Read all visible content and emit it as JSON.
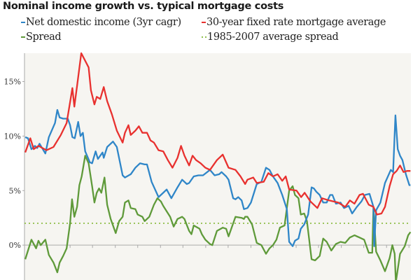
{
  "chart_data": {
    "type": "line",
    "title": "Nominal income growth vs. typical mortgage costs",
    "xlabel": "",
    "ylabel": "",
    "xlim": [
      0,
      100
    ],
    "ylim": [
      -3.2,
      17.6
    ],
    "yticks": [
      0,
      5,
      10,
      15
    ],
    "ytick_labels": [
      "0%",
      "5%",
      "10%",
      "15%"
    ],
    "xticks": [
      11.8,
      17.6,
      23.5,
      29.3,
      35.2,
      41.0,
      46.9,
      52.7,
      58.6,
      64.4,
      70.3,
      76.1,
      82.0,
      87.8,
      93.7,
      99.5
    ],
    "grid": false,
    "legend_placement": "top",
    "colors": {
      "income": "#2f86c8",
      "mortgage": "#e8312f",
      "spread": "#5f9a3a",
      "avg": "#9cc45c",
      "background": "#f6f5f1",
      "axis": "#aaaaaa"
    },
    "series": [
      {
        "key": "income",
        "name": "Net domestic income (3yr cagr)",
        "x": [
          0.2,
          0.9,
          1.8,
          2.7,
          3.3,
          3.9,
          5.4,
          6.3,
          7.9,
          8.5,
          9.1,
          10.0,
          11.2,
          11.8,
          12.4,
          13.0,
          13.9,
          14.5,
          15.1,
          15.7,
          16.9,
          17.5,
          18.4,
          19.0,
          20.2,
          20.5,
          21.4,
          22.9,
          23.9,
          25.4,
          26.0,
          27.5,
          28.7,
          29.9,
          31.1,
          31.7,
          32.9,
          34.7,
          35.9,
          36.8,
          38.0,
          39.6,
          40.8,
          42.0,
          42.6,
          43.8,
          45.0,
          46.2,
          48.0,
          49.2,
          50.4,
          51.0,
          52.2,
          52.8,
          54.0,
          54.6,
          55.3,
          56.2,
          56.8,
          57.7,
          58.6,
          60.1,
          61.3,
          62.5,
          63.4,
          64.3,
          65.5,
          66.7,
          67.9,
          68.5,
          69.4,
          70.0,
          70.9,
          71.5,
          72.4,
          73.4,
          74.3,
          74.9,
          75.5,
          76.4,
          77.3,
          78.2,
          79.1,
          79.7,
          80.6,
          81.8,
          82.7,
          83.9,
          84.8,
          86.0,
          87.2,
          88.1,
          89.3,
          90.3,
          90.5,
          91.0,
          92.1,
          93.3,
          94.8,
          95.4,
          96.0,
          96.6,
          97.2,
          97.8,
          98.7,
          99.6,
          99.9
        ],
        "y": [
          9.9,
          9.8,
          8.8,
          9.1,
          8.9,
          9.3,
          8.4,
          9.9,
          11.2,
          12.4,
          11.7,
          11.6,
          11.6,
          11.0,
          9.9,
          9.8,
          11.3,
          10.0,
          10.3,
          8.6,
          7.6,
          7.5,
          8.6,
          7.9,
          8.5,
          8.0,
          9.0,
          9.5,
          9.0,
          6.4,
          6.2,
          6.5,
          7.1,
          7.5,
          7.4,
          7.4,
          5.8,
          4.4,
          4.8,
          5.1,
          4.3,
          5.3,
          6.0,
          5.6,
          5.7,
          6.3,
          6.4,
          6.4,
          6.9,
          6.4,
          6.5,
          6.7,
          6.3,
          6.0,
          4.3,
          4.2,
          4.4,
          4.1,
          3.3,
          3.4,
          3.9,
          5.6,
          5.8,
          7.1,
          6.9,
          6.3,
          5.7,
          4.6,
          3.3,
          0.3,
          -0.1,
          0.4,
          0.6,
          1.5,
          1.9,
          2.8,
          5.3,
          5.2,
          4.9,
          4.6,
          3.9,
          3.9,
          4.6,
          4.6,
          3.8,
          3.9,
          3.4,
          3.6,
          2.9,
          3.5,
          4.0,
          4.6,
          4.7,
          3.5,
          -0.1,
          3.2,
          3.9,
          5.7,
          6.9,
          6.7,
          11.9,
          8.8,
          8.2,
          7.8,
          6.5,
          5.5,
          5.5
        ]
      },
      {
        "key": "mortgage",
        "name": "30-year fixed rate mortgage average",
        "x": [
          0.2,
          1.5,
          2.4,
          3.6,
          5.7,
          7.5,
          9.4,
          10.9,
          11.8,
          12.4,
          12.9,
          13.6,
          14.7,
          16.6,
          17.2,
          18.1,
          18.7,
          19.6,
          20.5,
          21.4,
          22.6,
          23.9,
          25.4,
          26.0,
          26.9,
          27.5,
          28.7,
          29.6,
          30.5,
          31.7,
          32.6,
          33.5,
          34.7,
          35.9,
          37.1,
          38.3,
          39.6,
          40.5,
          41.4,
          42.6,
          43.5,
          44.4,
          45.6,
          46.8,
          48.0,
          49.8,
          51.3,
          52.8,
          54.6,
          55.9,
          57.1,
          57.7,
          59.2,
          60.1,
          61.9,
          63.1,
          64.3,
          65.5,
          66.7,
          67.6,
          68.5,
          70.4,
          71.6,
          72.5,
          74.0,
          75.8,
          77.0,
          78.8,
          81.2,
          83.0,
          84.2,
          85.4,
          86.7,
          87.6,
          89.1,
          90.3,
          91.2,
          92.4,
          93.3,
          94.5,
          95.4,
          96.3,
          97.2,
          98.1,
          99.0,
          99.9
        ],
        "y": [
          8.5,
          9.8,
          8.8,
          9.1,
          8.7,
          9.0,
          10.1,
          11.2,
          13.1,
          14.4,
          12.7,
          14.6,
          17.6,
          16.3,
          14.2,
          12.9,
          13.6,
          13.4,
          14.5,
          13.2,
          12.0,
          10.5,
          9.4,
          10.3,
          11.0,
          10.1,
          10.5,
          10.9,
          10.3,
          10.3,
          9.6,
          9.4,
          8.7,
          8.6,
          7.8,
          7.1,
          8.0,
          9.1,
          8.2,
          7.3,
          8.2,
          7.8,
          7.5,
          7.1,
          6.9,
          7.8,
          8.3,
          7.1,
          6.9,
          6.3,
          5.6,
          6.0,
          6.2,
          5.7,
          5.8,
          6.6,
          6.3,
          6.5,
          5.9,
          6.3,
          5.1,
          5.0,
          4.4,
          4.8,
          4.0,
          3.4,
          4.3,
          4.1,
          3.9,
          3.5,
          4.1,
          3.8,
          4.6,
          4.7,
          3.7,
          3.5,
          2.8,
          2.9,
          3.5,
          5.4,
          6.5,
          6.8,
          7.3,
          6.7,
          6.8,
          6.8
        ]
      },
      {
        "key": "spread",
        "name": "Spread",
        "x": [
          0.2,
          1.8,
          3.0,
          3.6,
          4.2,
          5.4,
          6.3,
          7.5,
          8.5,
          9.1,
          10.0,
          10.9,
          11.8,
          12.3,
          12.9,
          13.6,
          14.2,
          14.8,
          15.7,
          16.6,
          17.5,
          18.1,
          18.7,
          19.3,
          19.9,
          20.7,
          21.4,
          22.3,
          23.6,
          24.5,
          25.4,
          26.0,
          26.9,
          27.5,
          28.7,
          29.3,
          30.5,
          31.1,
          32.3,
          33.5,
          34.4,
          35.3,
          35.9,
          36.8,
          37.7,
          38.6,
          39.6,
          40.8,
          41.4,
          42.6,
          43.2,
          43.8,
          45.3,
          45.9,
          46.8,
          48.0,
          48.6,
          49.8,
          51.3,
          52.2,
          52.8,
          54.6,
          56.2,
          56.8,
          57.1,
          57.7,
          58.9,
          60.1,
          61.3,
          62.5,
          63.4,
          64.3,
          65.2,
          66.1,
          67.3,
          68.5,
          69.4,
          70.0,
          70.9,
          71.5,
          72.4,
          73.1,
          74.3,
          75.2,
          76.4,
          77.3,
          78.2,
          79.4,
          80.6,
          81.8,
          83.0,
          84.2,
          85.4,
          86.7,
          87.9,
          89.1,
          90.0,
          90.3,
          91.0,
          92.1,
          93.3,
          94.5,
          95.2,
          95.8,
          96.1,
          97.2,
          98.4,
          99.3,
          99.9
        ],
        "y": [
          -1.3,
          0.5,
          -0.3,
          0.4,
          0.0,
          0.5,
          -0.9,
          -1.6,
          -2.5,
          -1.6,
          -1.0,
          -0.3,
          2.0,
          4.2,
          2.6,
          3.5,
          5.5,
          6.3,
          8.2,
          7.5,
          5.4,
          3.9,
          4.8,
          5.2,
          4.8,
          6.2,
          3.7,
          2.4,
          1.1,
          2.2,
          2.6,
          3.9,
          4.1,
          3.4,
          3.3,
          2.8,
          2.6,
          2.2,
          2.6,
          3.7,
          4.3,
          4.0,
          3.6,
          3.1,
          2.6,
          1.7,
          2.4,
          2.6,
          2.4,
          1.3,
          1.0,
          1.8,
          1.5,
          1.0,
          0.5,
          0.1,
          0.0,
          1.3,
          1.6,
          1.5,
          0.8,
          2.6,
          2.5,
          2.4,
          2.6,
          2.6,
          1.9,
          0.2,
          0.0,
          -0.8,
          -0.3,
          0.0,
          0.5,
          1.6,
          1.8,
          5.0,
          5.4,
          4.6,
          4.3,
          2.8,
          2.9,
          2.2,
          -1.3,
          -1.4,
          -1.0,
          0.6,
          0.3,
          -0.5,
          0.1,
          0.3,
          0.2,
          0.7,
          0.9,
          0.7,
          0.5,
          -0.7,
          -0.7,
          3.5,
          -0.6,
          -1.4,
          -2.4,
          -1.2,
          0.0,
          -0.8,
          -3.4,
          -0.8,
          -0.1,
          0.9,
          1.2
        ]
      },
      {
        "key": "avg",
        "name": "1985-2007 average spread",
        "x": [
          0,
          100
        ],
        "y": [
          2.0,
          2.0
        ]
      }
    ]
  }
}
